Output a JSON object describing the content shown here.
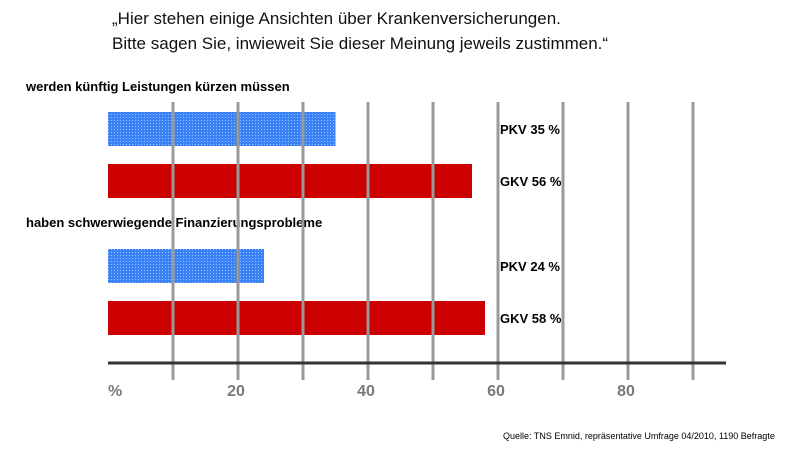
{
  "header": {
    "title_line1": "„Hier stehen einige Ansichten über Krankenversicherungen.",
    "title_line2": "Bitte sagen Sie, inwieweit Sie dieser Meinung jeweils zustimmen.“"
  },
  "chart_data": {
    "type": "bar",
    "orientation": "horizontal",
    "xlim": [
      0,
      95
    ],
    "x_ticks": [
      10,
      20,
      30,
      40,
      50,
      60,
      70,
      80,
      90
    ],
    "x_tick_labels": [
      "%",
      "20",
      "40",
      "60",
      "80"
    ],
    "grid": true,
    "groups": [
      {
        "label": "werden künftig Leistungen kürzen müssen",
        "bars": [
          {
            "name": "PKV",
            "value": 35,
            "label": "PKV 35 %",
            "color": "#3b82f6"
          },
          {
            "name": "GKV",
            "value": 56,
            "label": "GKV 56 %",
            "color": "#cc0000"
          }
        ]
      },
      {
        "label": "haben schwerwiegende Finanzierungsprobleme",
        "bars": [
          {
            "name": "PKV",
            "value": 24,
            "label": "PKV 24 %",
            "color": "#3b82f6"
          },
          {
            "name": "GKV",
            "value": 58,
            "label": "GKV 58 %",
            "color": "#cc0000"
          }
        ]
      }
    ]
  },
  "footer": {
    "source": "Quelle: TNS Emnid, repräsentative Umfrage 04/2010, 1190 Befragte"
  }
}
